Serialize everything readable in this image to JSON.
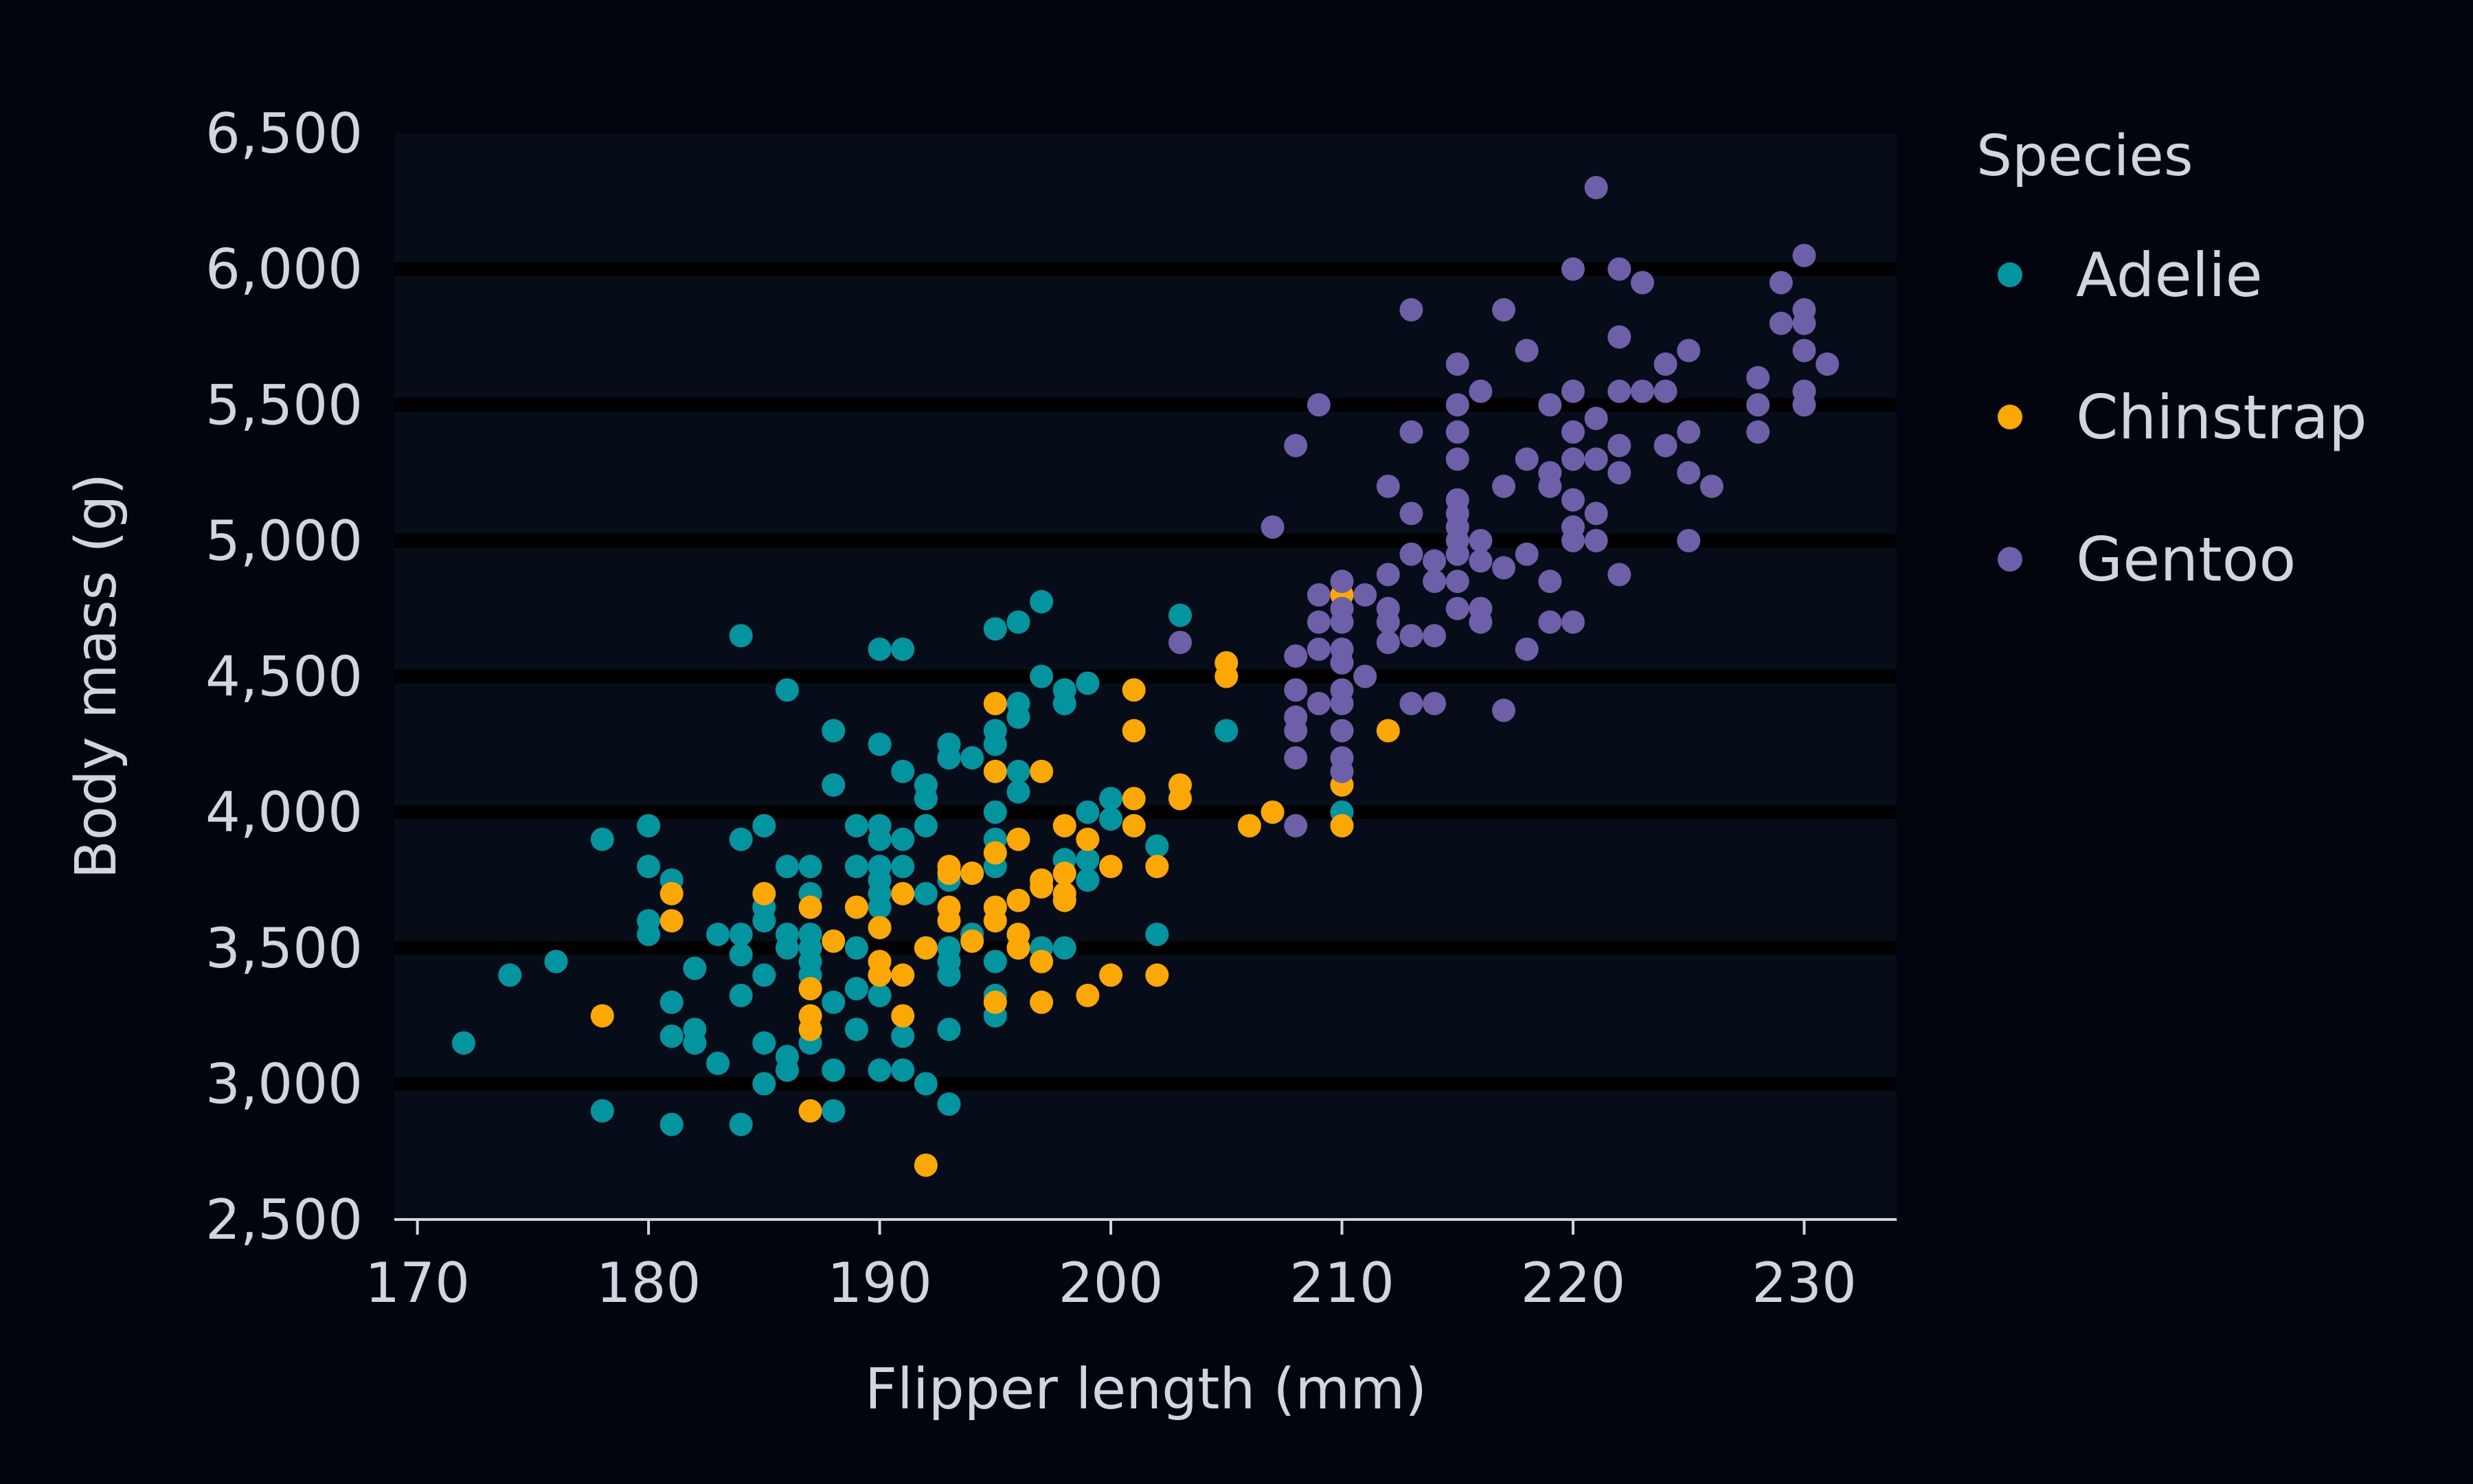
{
  "chart_data": {
    "type": "scatter",
    "xlabel": "Flipper length (mm)",
    "ylabel": "Body mass (g)",
    "xlim": [
      169,
      234
    ],
    "ylim": [
      2500,
      6500
    ],
    "xticks": [
      170,
      180,
      190,
      200,
      210,
      220,
      230
    ],
    "yticks": [
      2500,
      3000,
      3500,
      4000,
      4500,
      5000,
      5500,
      6000,
      6500
    ],
    "xtick_labels": [
      "170",
      "180",
      "190",
      "200",
      "210",
      "220",
      "230"
    ],
    "ytick_labels": [
      "2,500",
      "3,000",
      "3,500",
      "4,000",
      "4,500",
      "5,000",
      "5,500",
      "6,000",
      "6,500"
    ],
    "grid": "horizontal",
    "legend": {
      "title": "Species",
      "placement": "outside-right"
    },
    "background": "#02050d",
    "plot_background": "#060d18",
    "series": [
      {
        "name": "Adelie",
        "color": "#03959f",
        "points": [
          [
            172,
            3150
          ],
          [
            174,
            3400
          ],
          [
            176,
            3450
          ],
          [
            178,
            3900
          ],
          [
            178,
            2900
          ],
          [
            180,
            3950
          ],
          [
            180,
            3800
          ],
          [
            180,
            3600
          ],
          [
            180,
            3550
          ],
          [
            181,
            3750
          ],
          [
            181,
            3300
          ],
          [
            181,
            3175
          ],
          [
            181,
            2850
          ],
          [
            182,
            3425
          ],
          [
            182,
            3200
          ],
          [
            182,
            3150
          ],
          [
            183,
            3550
          ],
          [
            183,
            3075
          ],
          [
            184,
            4650
          ],
          [
            184,
            3900
          ],
          [
            184,
            3550
          ],
          [
            184,
            3475
          ],
          [
            184,
            3325
          ],
          [
            184,
            2850
          ],
          [
            185,
            3950
          ],
          [
            185,
            3650
          ],
          [
            185,
            3600
          ],
          [
            185,
            3400
          ],
          [
            185,
            3150
          ],
          [
            185,
            3000
          ],
          [
            186,
            4450
          ],
          [
            186,
            3800
          ],
          [
            186,
            3550
          ],
          [
            186,
            3500
          ],
          [
            186,
            3100
          ],
          [
            186,
            3050
          ],
          [
            187,
            3800
          ],
          [
            187,
            3700
          ],
          [
            187,
            3550
          ],
          [
            187,
            3500
          ],
          [
            187,
            3450
          ],
          [
            187,
            3400
          ],
          [
            187,
            3150
          ],
          [
            188,
            4300
          ],
          [
            188,
            4100
          ],
          [
            188,
            3300
          ],
          [
            188,
            3050
          ],
          [
            188,
            2900
          ],
          [
            189,
            3950
          ],
          [
            189,
            3800
          ],
          [
            189,
            3500
          ],
          [
            189,
            3350
          ],
          [
            189,
            3200
          ],
          [
            190,
            4600
          ],
          [
            190,
            4250
          ],
          [
            190,
            3950
          ],
          [
            190,
            3900
          ],
          [
            190,
            3800
          ],
          [
            190,
            3750
          ],
          [
            190,
            3700
          ],
          [
            190,
            3650
          ],
          [
            190,
            3400
          ],
          [
            190,
            3325
          ],
          [
            190,
            3050
          ],
          [
            191,
            4600
          ],
          [
            191,
            4150
          ],
          [
            191,
            3900
          ],
          [
            191,
            3800
          ],
          [
            191,
            3175
          ],
          [
            191,
            3050
          ],
          [
            192,
            4100
          ],
          [
            192,
            4050
          ],
          [
            192,
            3950
          ],
          [
            192,
            3700
          ],
          [
            192,
            3500
          ],
          [
            192,
            3000
          ],
          [
            193,
            4250
          ],
          [
            193,
            4200
          ],
          [
            193,
            3750
          ],
          [
            193,
            3500
          ],
          [
            193,
            3450
          ],
          [
            193,
            3400
          ],
          [
            193,
            3200
          ],
          [
            193,
            2925
          ],
          [
            194,
            4200
          ],
          [
            194,
            3775
          ],
          [
            194,
            3550
          ],
          [
            195,
            4675
          ],
          [
            195,
            4300
          ],
          [
            195,
            4250
          ],
          [
            195,
            4000
          ],
          [
            195,
            3900
          ],
          [
            195,
            3800
          ],
          [
            195,
            3450
          ],
          [
            195,
            3325
          ],
          [
            195,
            3250
          ],
          [
            196,
            4700
          ],
          [
            196,
            4400
          ],
          [
            196,
            4350
          ],
          [
            196,
            4150
          ],
          [
            196,
            4075
          ],
          [
            196,
            3500
          ],
          [
            197,
            4775
          ],
          [
            197,
            4500
          ],
          [
            197,
            3500
          ],
          [
            198,
            4450
          ],
          [
            198,
            4400
          ],
          [
            198,
            3825
          ],
          [
            198,
            3500
          ],
          [
            199,
            4475
          ],
          [
            199,
            4000
          ],
          [
            199,
            3825
          ],
          [
            199,
            3750
          ],
          [
            200,
            4050
          ],
          [
            200,
            3975
          ],
          [
            202,
            3875
          ],
          [
            202,
            3550
          ],
          [
            203,
            4725
          ],
          [
            205,
            4300
          ],
          [
            210,
            4000
          ]
        ]
      },
      {
        "name": "Chinstrap",
        "color": "#fba805",
        "points": [
          [
            178,
            3250
          ],
          [
            181,
            3700
          ],
          [
            181,
            3600
          ],
          [
            185,
            3700
          ],
          [
            187,
            3650
          ],
          [
            187,
            3350
          ],
          [
            187,
            3250
          ],
          [
            187,
            3200
          ],
          [
            187,
            2900
          ],
          [
            188,
            3525
          ],
          [
            189,
            3650
          ],
          [
            190,
            3575
          ],
          [
            190,
            3450
          ],
          [
            190,
            3400
          ],
          [
            191,
            3700
          ],
          [
            191,
            3400
          ],
          [
            191,
            3250
          ],
          [
            192,
            3500
          ],
          [
            192,
            2700
          ],
          [
            193,
            3800
          ],
          [
            193,
            3775
          ],
          [
            193,
            3650
          ],
          [
            193,
            3600
          ],
          [
            194,
            3775
          ],
          [
            194,
            3525
          ],
          [
            195,
            4400
          ],
          [
            195,
            4150
          ],
          [
            195,
            3850
          ],
          [
            195,
            3650
          ],
          [
            195,
            3600
          ],
          [
            195,
            3300
          ],
          [
            196,
            3900
          ],
          [
            196,
            3675
          ],
          [
            196,
            3550
          ],
          [
            196,
            3500
          ],
          [
            197,
            4150
          ],
          [
            197,
            3750
          ],
          [
            197,
            3725
          ],
          [
            197,
            3450
          ],
          [
            197,
            3300
          ],
          [
            198,
            3950
          ],
          [
            198,
            3775
          ],
          [
            198,
            3700
          ],
          [
            198,
            3675
          ],
          [
            199,
            3900
          ],
          [
            199,
            3325
          ],
          [
            200,
            3800
          ],
          [
            200,
            3400
          ],
          [
            201,
            4450
          ],
          [
            201,
            4300
          ],
          [
            201,
            4050
          ],
          [
            201,
            3950
          ],
          [
            202,
            3800
          ],
          [
            202,
            3400
          ],
          [
            203,
            4100
          ],
          [
            203,
            4050
          ],
          [
            205,
            4550
          ],
          [
            205,
            4500
          ],
          [
            206,
            3950
          ],
          [
            207,
            4000
          ],
          [
            210,
            4800
          ],
          [
            210,
            4100
          ],
          [
            210,
            3950
          ],
          [
            212,
            4300
          ]
        ]
      },
      {
        "name": "Gentoo",
        "color": "#6d5fa8",
        "points": [
          [
            203,
            4625
          ],
          [
            207,
            5050
          ],
          [
            208,
            5350
          ],
          [
            208,
            4575
          ],
          [
            208,
            4450
          ],
          [
            208,
            4350
          ],
          [
            208,
            4300
          ],
          [
            208,
            4200
          ],
          [
            208,
            3950
          ],
          [
            209,
            5500
          ],
          [
            209,
            4800
          ],
          [
            209,
            4700
          ],
          [
            209,
            4600
          ],
          [
            209,
            4400
          ],
          [
            210,
            4850
          ],
          [
            210,
            4750
          ],
          [
            210,
            4700
          ],
          [
            210,
            4600
          ],
          [
            210,
            4550
          ],
          [
            210,
            4450
          ],
          [
            210,
            4400
          ],
          [
            210,
            4300
          ],
          [
            210,
            4200
          ],
          [
            210,
            4150
          ],
          [
            211,
            4800
          ],
          [
            211,
            4500
          ],
          [
            212,
            5200
          ],
          [
            212,
            4875
          ],
          [
            212,
            4750
          ],
          [
            212,
            4700
          ],
          [
            212,
            4625
          ],
          [
            213,
            5850
          ],
          [
            213,
            5400
          ],
          [
            213,
            5100
          ],
          [
            213,
            4950
          ],
          [
            213,
            4650
          ],
          [
            213,
            4400
          ],
          [
            214,
            4925
          ],
          [
            214,
            4850
          ],
          [
            214,
            4650
          ],
          [
            214,
            4400
          ],
          [
            215,
            5650
          ],
          [
            215,
            5500
          ],
          [
            215,
            5400
          ],
          [
            215,
            5300
          ],
          [
            215,
            5150
          ],
          [
            215,
            5100
          ],
          [
            215,
            5050
          ],
          [
            215,
            5000
          ],
          [
            215,
            4950
          ],
          [
            215,
            4850
          ],
          [
            215,
            4750
          ],
          [
            216,
            5550
          ],
          [
            216,
            5000
          ],
          [
            216,
            4925
          ],
          [
            216,
            4750
          ],
          [
            216,
            4700
          ],
          [
            217,
            5850
          ],
          [
            217,
            5200
          ],
          [
            217,
            4900
          ],
          [
            217,
            4375
          ],
          [
            218,
            5700
          ],
          [
            218,
            5300
          ],
          [
            218,
            4950
          ],
          [
            218,
            4600
          ],
          [
            219,
            5500
          ],
          [
            219,
            5250
          ],
          [
            219,
            5200
          ],
          [
            219,
            4850
          ],
          [
            219,
            4700
          ],
          [
            220,
            6000
          ],
          [
            220,
            5550
          ],
          [
            220,
            5400
          ],
          [
            220,
            5300
          ],
          [
            220,
            5150
          ],
          [
            220,
            5050
          ],
          [
            220,
            5000
          ],
          [
            220,
            4700
          ],
          [
            221,
            6300
          ],
          [
            221,
            5450
          ],
          [
            221,
            5300
          ],
          [
            221,
            5100
          ],
          [
            221,
            5000
          ],
          [
            222,
            6000
          ],
          [
            222,
            5750
          ],
          [
            222,
            5550
          ],
          [
            222,
            5350
          ],
          [
            222,
            5250
          ],
          [
            222,
            4875
          ],
          [
            223,
            5950
          ],
          [
            223,
            5550
          ],
          [
            224,
            5650
          ],
          [
            224,
            5550
          ],
          [
            224,
            5350
          ],
          [
            225,
            5700
          ],
          [
            225,
            5400
          ],
          [
            225,
            5250
          ],
          [
            225,
            5000
          ],
          [
            226,
            5200
          ],
          [
            228,
            5600
          ],
          [
            228,
            5500
          ],
          [
            228,
            5400
          ],
          [
            229,
            5950
          ],
          [
            229,
            5800
          ],
          [
            230,
            6050
          ],
          [
            230,
            5850
          ],
          [
            230,
            5800
          ],
          [
            230,
            5700
          ],
          [
            230,
            5550
          ],
          [
            230,
            5500
          ],
          [
            231,
            5650
          ]
        ]
      }
    ]
  }
}
